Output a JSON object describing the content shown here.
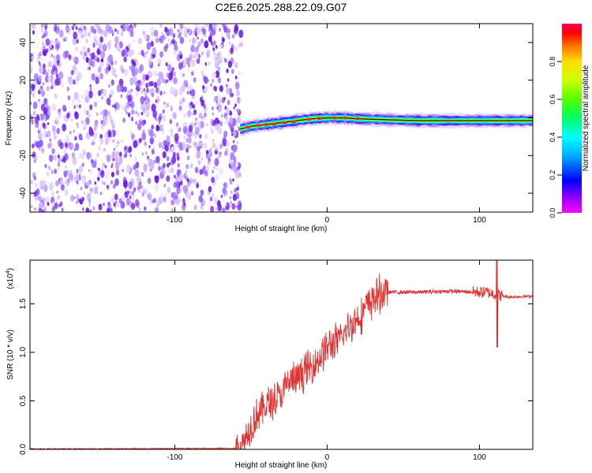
{
  "title": "C2E6.2025.288.22.09.G07",
  "chart_data": [
    {
      "type": "heatmap",
      "xlabel": "Height of straight line (km)",
      "ylabel": "Frequency (Hz)",
      "xlim": [
        -195,
        135
      ],
      "ylim": [
        -50,
        50
      ],
      "xticks": [
        -100,
        0,
        100
      ],
      "yticks": [
        -40,
        -20,
        0,
        20,
        40
      ],
      "colorbar": {
        "label": "Normalized spectral amplitude",
        "range": [
          0,
          1
        ],
        "ticks": [
          "0.0",
          "0.2",
          "0.4",
          "0.6",
          "0.8"
        ]
      },
      "noise_region": {
        "x_range": [
          -195,
          -57
        ],
        "freq_range": [
          -50,
          50
        ]
      },
      "signal_trace": {
        "x": [
          -57,
          -50,
          -40,
          -30,
          -20,
          -10,
          0,
          10,
          20,
          40,
          60,
          80,
          100,
          120,
          135
        ],
        "freq": [
          -6,
          -4.5,
          -3.5,
          -2.5,
          -1.5,
          -0.5,
          0,
          0,
          -0.5,
          -1,
          -1.5,
          -1.5,
          -1.5,
          -1.5,
          -1.5
        ]
      }
    },
    {
      "type": "line",
      "xlabel": "Height of straight line (km)",
      "ylabel": "SNR (10 * v/v)",
      "scale_note": "(x10",
      "scale_exp": "4",
      "xlim": [
        -195,
        135
      ],
      "ylim": [
        0,
        1.95
      ],
      "xticks": [
        -100,
        0,
        100
      ],
      "yticks": [
        0.0,
        0.5,
        1.0,
        1.5
      ],
      "color": "#e03030",
      "x": [
        -195,
        -150,
        -100,
        -60,
        -55,
        -50,
        -45,
        -40,
        -35,
        -30,
        -25,
        -20,
        -15,
        -10,
        -5,
        0,
        5,
        10,
        15,
        20,
        25,
        30,
        35,
        40,
        60,
        80,
        100,
        105,
        110,
        112,
        115,
        120,
        135
      ],
      "y": [
        0.005,
        0.005,
        0.008,
        0.01,
        0.05,
        0.25,
        0.38,
        0.45,
        0.5,
        0.55,
        0.7,
        0.72,
        0.8,
        0.85,
        0.95,
        1.05,
        1.1,
        1.15,
        1.28,
        1.35,
        1.45,
        1.55,
        1.6,
        1.62,
        1.62,
        1.63,
        1.62,
        1.62,
        1.6,
        1.6,
        1.58,
        1.57,
        1.58
      ]
    }
  ]
}
